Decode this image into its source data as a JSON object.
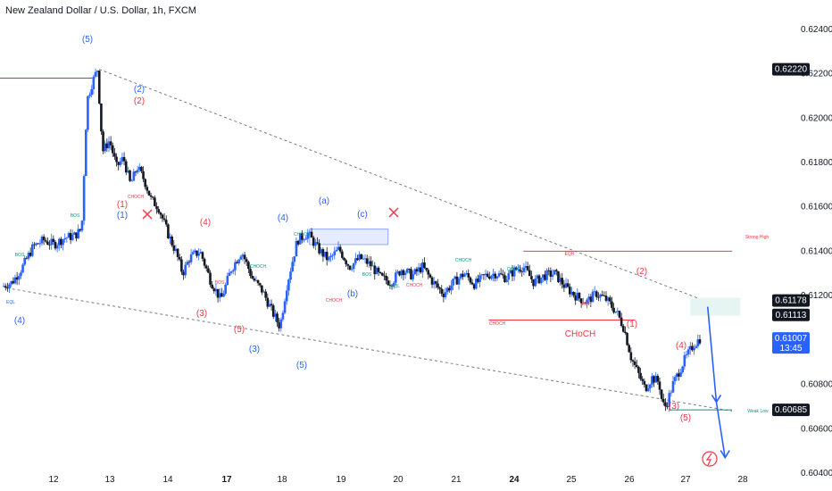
{
  "header": {
    "title": "New Zealand Dollar / U.S. Dollar, 1h, FXCM"
  },
  "chart_data": {
    "type": "candlestick",
    "symbol": "NZDUSD",
    "timeframe": "1h",
    "ylim": [
      0.604,
      0.625
    ],
    "y_ticks": [
      "0.62400",
      "0.62200",
      "0.62000",
      "0.61800",
      "0.61600",
      "0.61400",
      "0.61200",
      "0.60800",
      "0.60600",
      "0.60400"
    ],
    "x_ticks": [
      {
        "label": "12",
        "bold": false
      },
      {
        "label": "13",
        "bold": false
      },
      {
        "label": "14",
        "bold": false
      },
      {
        "label": "17",
        "bold": true
      },
      {
        "label": "18",
        "bold": false
      },
      {
        "label": "19",
        "bold": false
      },
      {
        "label": "20",
        "bold": false
      },
      {
        "label": "21",
        "bold": false
      },
      {
        "label": "24",
        "bold": true
      },
      {
        "label": "25",
        "bold": false
      },
      {
        "label": "26",
        "bold": false
      },
      {
        "label": "27",
        "bold": false
      },
      {
        "label": "28",
        "bold": false
      }
    ],
    "price_badges": [
      {
        "label": "0.62220",
        "price": 0.6222,
        "bg": "#131722",
        "fg": "#ffffff"
      },
      {
        "label": "0.61178",
        "price": 0.61178,
        "bg": "#131722",
        "fg": "#ffffff"
      },
      {
        "label": "0.61113",
        "price": 0.61113,
        "bg": "#131722",
        "fg": "#ffffff"
      },
      {
        "label": "0.61007",
        "sub": "13:45",
        "price": 0.61007,
        "bg": "#2962ff",
        "fg": "#ffffff"
      },
      {
        "label": "0.60685",
        "price": 0.60685,
        "bg": "#131722",
        "fg": "#ffffff"
      }
    ],
    "price_path": [
      [
        0.0,
        0.6124
      ],
      [
        0.3,
        0.6126
      ],
      [
        0.6,
        0.6133
      ],
      [
        0.9,
        0.6142
      ],
      [
        1.2,
        0.6145
      ],
      [
        1.5,
        0.6143
      ],
      [
        1.8,
        0.6146
      ],
      [
        2.1,
        0.6147
      ],
      [
        2.3,
        0.615
      ],
      [
        2.45,
        0.6208
      ],
      [
        2.6,
        0.6216
      ],
      [
        2.75,
        0.6222
      ],
      [
        2.9,
        0.6185
      ],
      [
        3.1,
        0.619
      ],
      [
        3.3,
        0.6178
      ],
      [
        3.5,
        0.6182
      ],
      [
        3.7,
        0.617
      ],
      [
        3.9,
        0.6178
      ],
      [
        4.1,
        0.6172
      ],
      [
        4.3,
        0.6163
      ],
      [
        4.5,
        0.616
      ],
      [
        4.8,
        0.6147
      ],
      [
        5.0,
        0.614
      ],
      [
        5.2,
        0.613
      ],
      [
        5.4,
        0.6137
      ],
      [
        5.7,
        0.614
      ],
      [
        6.0,
        0.6127
      ],
      [
        6.3,
        0.6118
      ],
      [
        6.6,
        0.6132
      ],
      [
        6.9,
        0.614
      ],
      [
        7.2,
        0.6128
      ],
      [
        7.5,
        0.6122
      ],
      [
        7.8,
        0.6112
      ],
      [
        8.0,
        0.6106
      ],
      [
        8.2,
        0.6125
      ],
      [
        8.5,
        0.6145
      ],
      [
        8.8,
        0.6148
      ],
      [
        9.1,
        0.6141
      ],
      [
        9.4,
        0.6136
      ],
      [
        9.7,
        0.6141
      ],
      [
        10.0,
        0.6133
      ],
      [
        10.3,
        0.6137
      ],
      [
        10.6,
        0.6134
      ],
      [
        10.9,
        0.6128
      ],
      [
        11.2,
        0.6126
      ],
      [
        11.5,
        0.6132
      ],
      [
        11.8,
        0.6129
      ],
      [
        12.1,
        0.6133
      ],
      [
        12.4,
        0.6126
      ],
      [
        12.7,
        0.6121
      ],
      [
        13.0,
        0.6126
      ],
      [
        13.3,
        0.613
      ],
      [
        13.6,
        0.6125
      ],
      [
        13.9,
        0.6129
      ],
      [
        14.2,
        0.613
      ],
      [
        14.5,
        0.6128
      ],
      [
        14.8,
        0.6132
      ],
      [
        15.0,
        0.6133
      ],
      [
        15.3,
        0.6126
      ],
      [
        15.6,
        0.6129
      ],
      [
        15.9,
        0.613
      ],
      [
        16.2,
        0.6124
      ],
      [
        16.5,
        0.612
      ],
      [
        16.8,
        0.6117
      ],
      [
        17.1,
        0.6121
      ],
      [
        17.4,
        0.6118
      ],
      [
        17.7,
        0.6112
      ],
      [
        17.9,
        0.6105
      ],
      [
        18.1,
        0.6092
      ],
      [
        18.3,
        0.6085
      ],
      [
        18.5,
        0.6078
      ],
      [
        18.7,
        0.6083
      ],
      [
        18.9,
        0.6081
      ],
      [
        19.0,
        0.6071
      ],
      [
        19.1,
        0.607
      ],
      [
        19.3,
        0.608
      ],
      [
        19.6,
        0.609
      ],
      [
        19.9,
        0.6098
      ],
      [
        20.1,
        0.6101
      ]
    ],
    "x_day_index_range": [
      0,
      21
    ],
    "trendlines": [
      {
        "name": "upper-wedge",
        "from": [
          2.8,
          0.6222
        ],
        "to": [
          20.0,
          0.6119
        ],
        "color": "#787b86",
        "dash": true
      },
      {
        "name": "lower-wedge",
        "from": [
          0.3,
          0.6123
        ],
        "to": [
          21.0,
          0.6068
        ],
        "color": "#787b86",
        "dash": true
      },
      {
        "name": "horizontal-top",
        "from": [
          -1.0,
          0.6218
        ],
        "to": [
          2.6,
          0.6218
        ],
        "color": "#2962ff",
        "dash": false
      },
      {
        "name": "resistance",
        "from": [
          15.0,
          0.614
        ],
        "to": [
          21.0,
          0.614
        ],
        "color": "#f23645",
        "dash": false
      },
      {
        "name": "choch-line",
        "from": [
          14.0,
          0.6109
        ],
        "to": [
          18.2,
          0.6109
        ],
        "color": "#f23645",
        "dash": false
      },
      {
        "name": "support-line",
        "from": [
          19.2,
          0.60685
        ],
        "to": [
          21.0,
          0.60685
        ],
        "color": "#089981",
        "dash": false
      }
    ],
    "projection": [
      [
        20.3,
        0.6115
      ],
      [
        20.55,
        0.6072
      ],
      [
        20.8,
        0.6047
      ]
    ],
    "projection_color": "#2962ff",
    "wave_labels_blue": [
      "(5)",
      "(2)",
      "(1)",
      "(4)",
      "(a)",
      "(c)",
      "(b)",
      "(4)",
      "(3)",
      "(5)"
    ],
    "wave_labels_red": [
      "(2)",
      "(1)",
      "(4)",
      "(3)",
      "(5)",
      "(2)",
      "(1)",
      "(4)",
      "(3)",
      "(5)"
    ],
    "structure_labels": [
      "EQL",
      "BOS",
      "BOS",
      "CHOCH",
      "CHOCH",
      "BOS",
      "CHOCH",
      "CHOCH",
      "BOS",
      "EQL",
      "CHOCH",
      "EQH",
      "CHOCH",
      "CHOCH",
      "EQH",
      "CHOCH",
      "CHoCH",
      "Strong High",
      "Weak Low"
    ],
    "zone_color": "#2962ff",
    "ob_color": "#f23645"
  }
}
